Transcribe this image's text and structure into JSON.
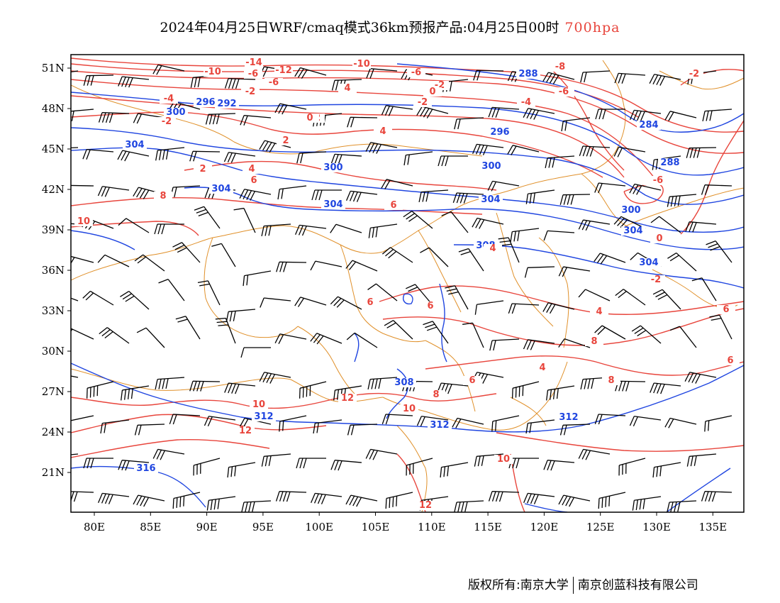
{
  "title": {
    "main": "2024年04月25日WRF/cmaq模式36km预报产品:04月25日00时",
    "level": "700hpa"
  },
  "colors": {
    "temperature": "#e8453c",
    "height": "#1f45e0",
    "border": "#e0902a",
    "wind": "#000000"
  },
  "axes": {
    "lon_ticks": [
      "80E",
      "85E",
      "90E",
      "95E",
      "100E",
      "105E",
      "110E",
      "115E",
      "120E",
      "125E",
      "130E",
      "135E"
    ],
    "lat_ticks": [
      "51N",
      "48N",
      "45N",
      "42N",
      "39N",
      "36N",
      "33N",
      "30N",
      "27N",
      "24N",
      "21N"
    ]
  },
  "height_labels": [
    "288",
    "296",
    "300",
    "292",
    "296",
    "304",
    "300",
    "300",
    "304",
    "304",
    "304",
    "300",
    "304",
    "308",
    "304",
    "308",
    "312",
    "312",
    "312",
    "316",
    "284",
    "288"
  ],
  "temperature_labels": [
    "-14",
    "-10",
    "-12",
    "-6",
    "-10",
    "-8",
    "-6",
    "-4",
    "-2",
    "-2",
    "0",
    "-2",
    "-6",
    "-4",
    "-2",
    "-4",
    "0",
    "-2",
    "2",
    "4",
    "4",
    "2",
    "4",
    "6",
    "8",
    "10",
    "6",
    "4",
    "6",
    "6",
    "8",
    "10",
    "12",
    "12",
    "10",
    "8",
    "6",
    "4",
    "-2",
    "0",
    "2",
    "4",
    "6",
    "6",
    "8",
    "10",
    "12",
    "-6",
    "-2",
    "-6"
  ],
  "footer": {
    "copyright": "版权所有:南京大学",
    "company": "南京创蓝科技有限公司"
  }
}
